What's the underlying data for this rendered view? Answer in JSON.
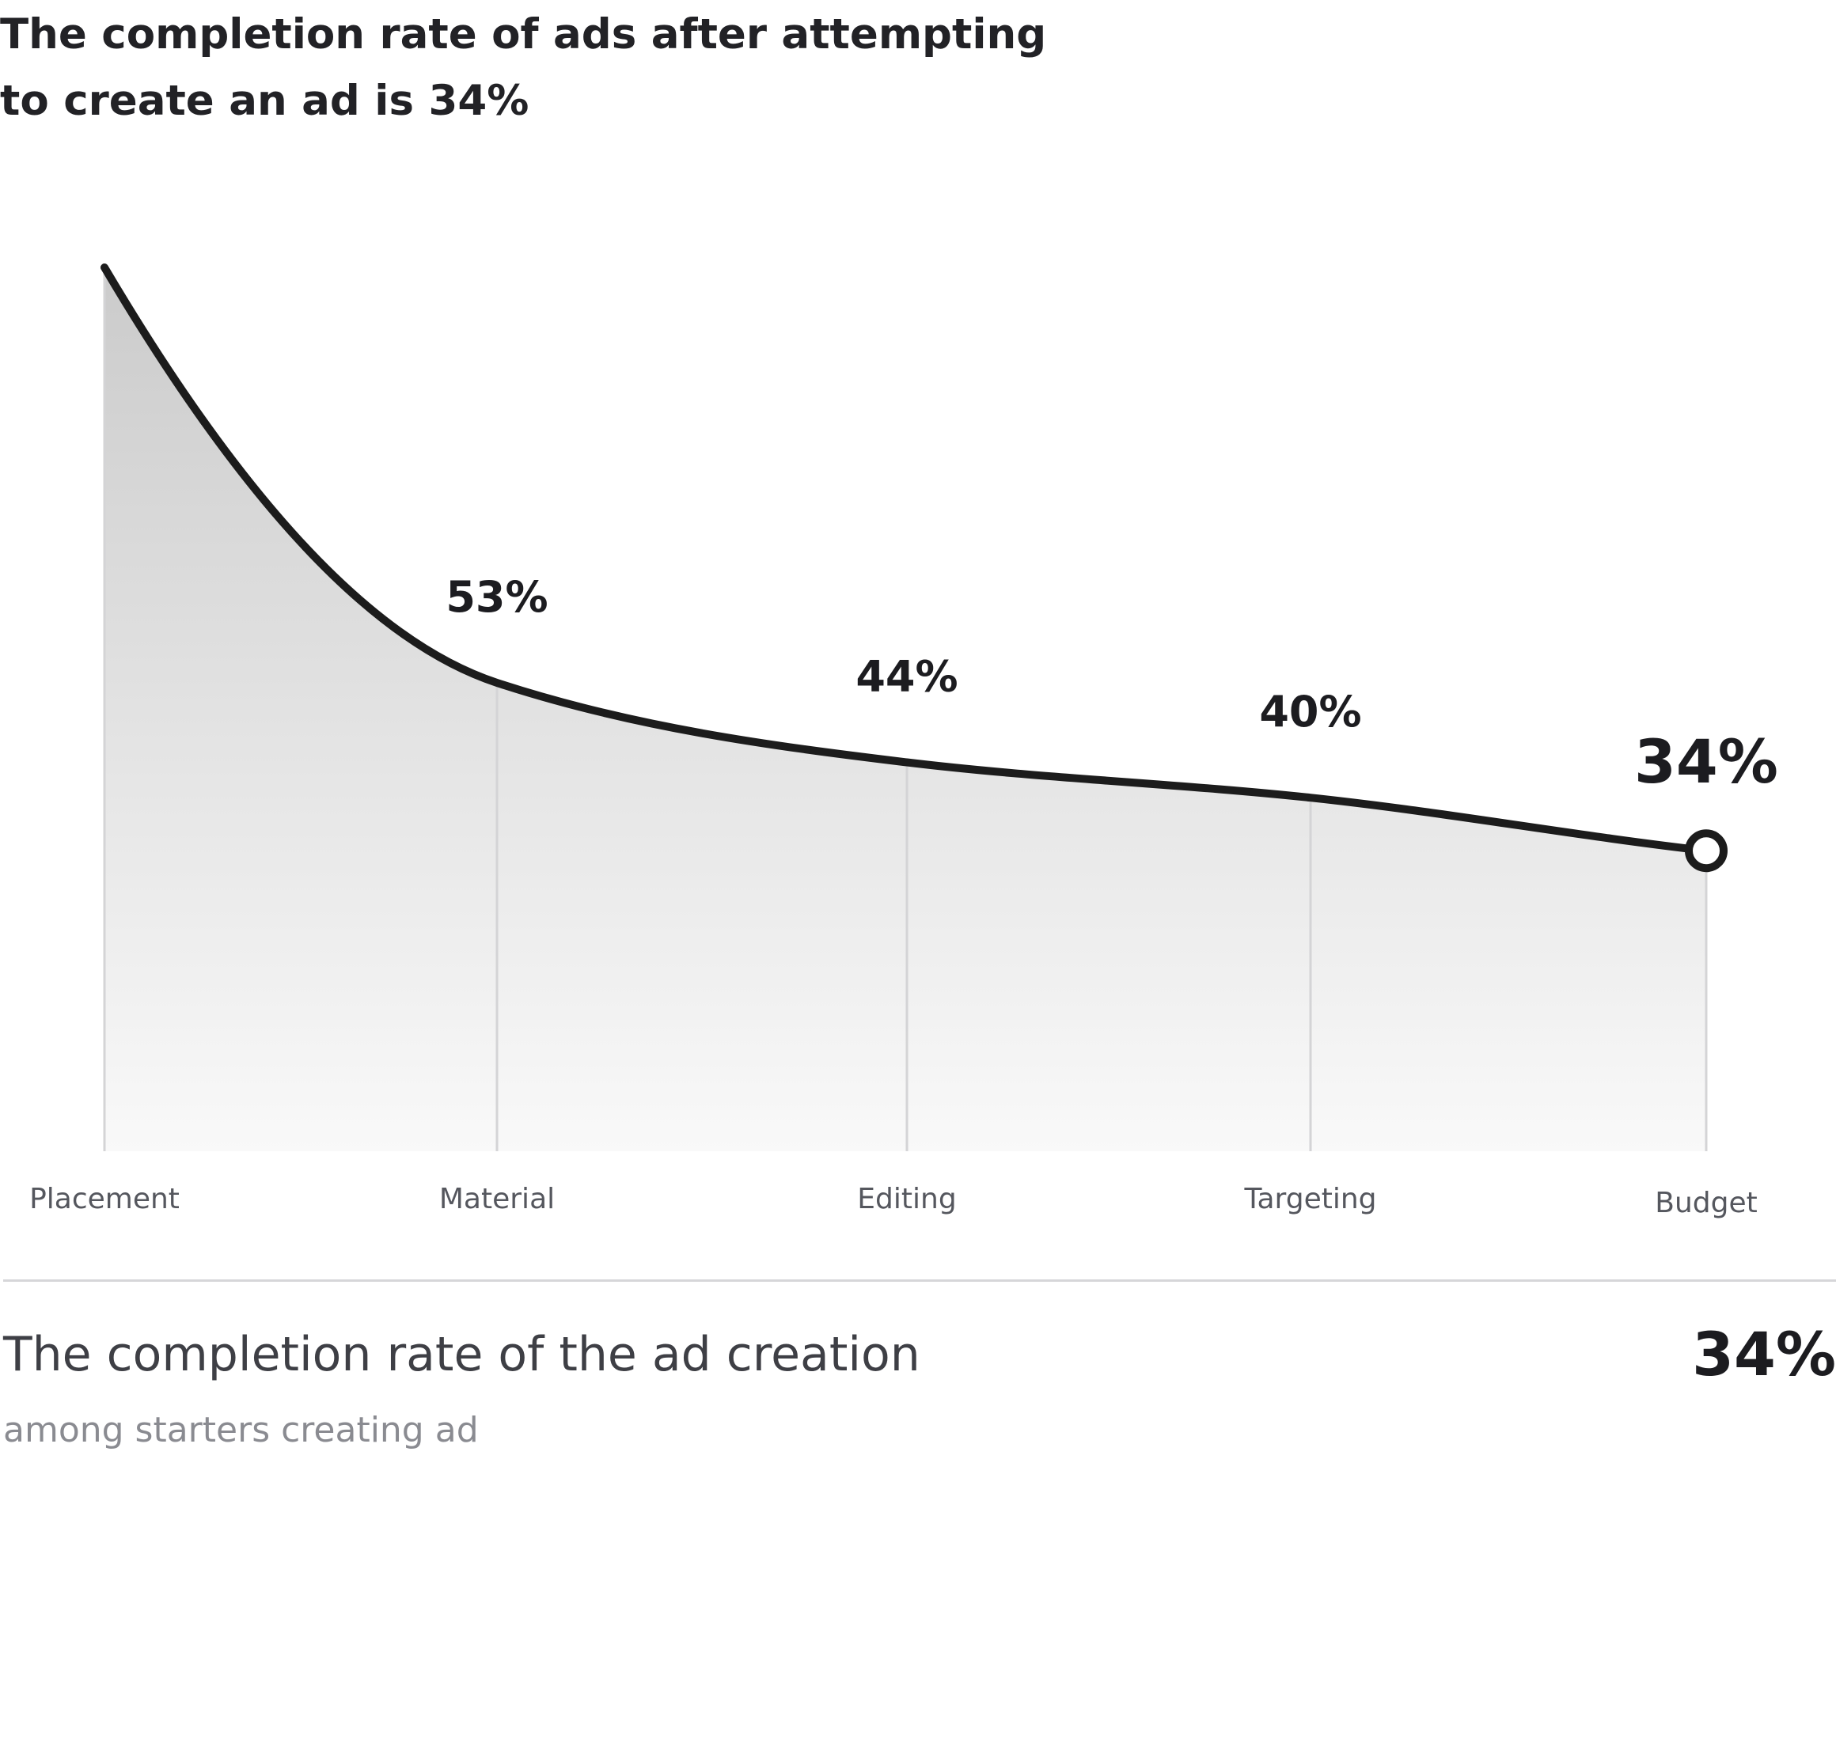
{
  "headline": "The completion rate of ads after attempting to create an ad is 34%",
  "chart_data": {
    "type": "area",
    "categories": [
      "Placement",
      "Material",
      "Editing",
      "Targeting",
      "Budget"
    ],
    "values": [
      100,
      53,
      44,
      40,
      34
    ],
    "value_labels": [
      "",
      "53%",
      "44%",
      "40%",
      "34%"
    ],
    "highlight_label": "34%",
    "ylim": [
      0,
      100
    ],
    "grid": false,
    "line_color": "#1c1c1c",
    "fill_color_top": "#cbcbcb",
    "fill_color_bottom": "#f9f9f9"
  },
  "summary": {
    "title": "The completion rate of the ad creation",
    "subtitle": "among starters creating ad",
    "value": "34%"
  }
}
